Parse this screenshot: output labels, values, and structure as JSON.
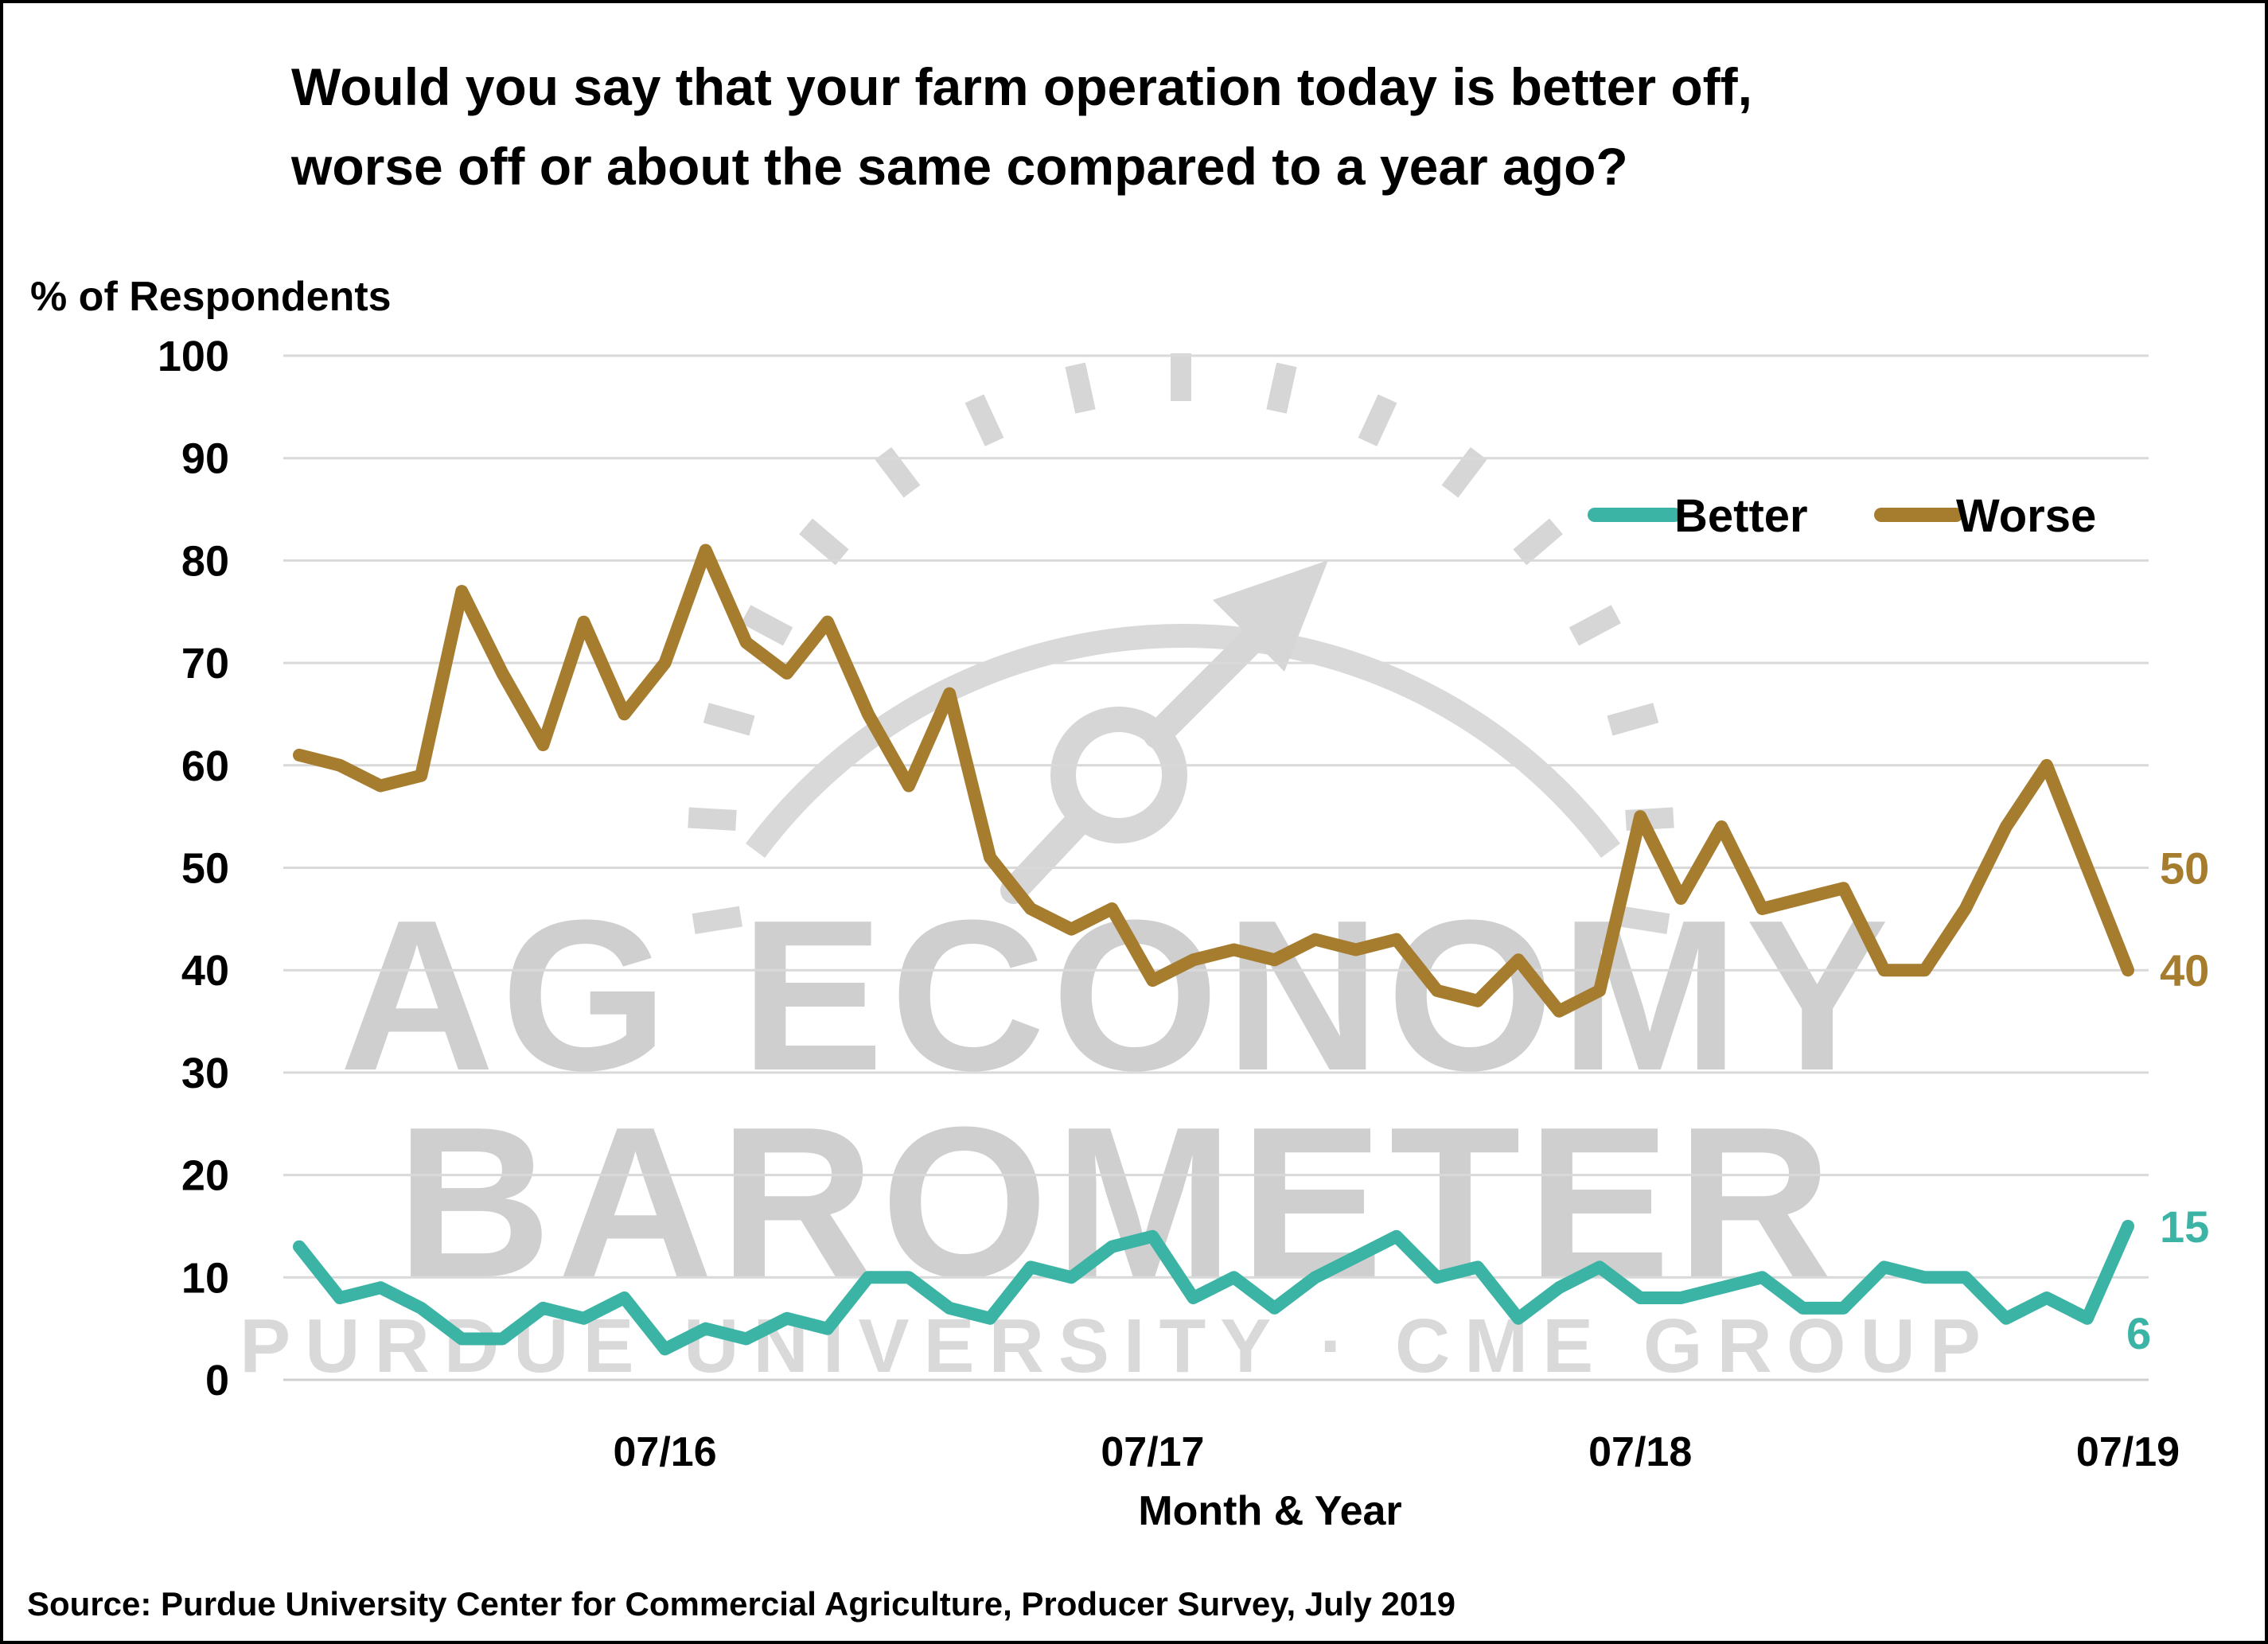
{
  "title_lines": [
    "Would you say that your farm operation today is better off,",
    "worse off or about the same compared to a year ago?"
  ],
  "watermark": {
    "line1": "AG ECONOMY",
    "line2": "BAROMETER",
    "line3": "PURDUE UNIVERSITY · CME GROUP",
    "icon": "gauge-icon"
  },
  "source": "Source: Purdue University Center for Commercial Agriculture, Producer Survey, July 2019",
  "chart_data": {
    "type": "line",
    "title": "Would you say that your farm operation today is better off, worse off or about the same compared to a year ago?",
    "xlabel": "Month & Year",
    "ylabel": "% of Respondents",
    "ylim": [
      0,
      100
    ],
    "yticks": [
      0,
      10,
      20,
      30,
      40,
      50,
      60,
      70,
      80,
      90,
      100
    ],
    "x_months": [
      "10/15",
      "11/15",
      "12/15",
      "01/16",
      "02/16",
      "03/16",
      "04/16",
      "05/16",
      "06/16",
      "07/16",
      "08/16",
      "09/16",
      "10/16",
      "11/16",
      "12/16",
      "01/17",
      "02/17",
      "03/17",
      "04/17",
      "05/17",
      "06/17",
      "07/17",
      "08/17",
      "09/17",
      "10/17",
      "11/17",
      "12/17",
      "01/18",
      "02/18",
      "03/18",
      "04/18",
      "05/18",
      "06/18",
      "07/18",
      "08/18",
      "09/18",
      "10/18",
      "11/18",
      "12/18",
      "01/19",
      "02/19",
      "03/19",
      "04/19",
      "05/19",
      "06/19",
      "07/19"
    ],
    "xtick_labels": [
      "07/16",
      "07/17",
      "07/18",
      "07/19"
    ],
    "grid": true,
    "legend_position": "top-right",
    "series": [
      {
        "name": "Better",
        "color": "#3bb3a5",
        "end_labels": [
          "15",
          "6"
        ],
        "values": [
          13,
          8,
          9,
          7,
          4,
          4,
          7,
          6,
          8,
          3,
          5,
          4,
          6,
          5,
          10,
          10,
          7,
          6,
          11,
          10,
          13,
          14,
          8,
          10,
          7,
          10,
          12,
          14,
          10,
          11,
          6,
          9,
          11,
          8,
          8,
          9,
          10,
          7,
          7,
          11,
          10,
          10,
          6,
          8,
          6,
          15
        ]
      },
      {
        "name": "Worse",
        "color": "#a67c2e",
        "end_labels": [
          "50",
          "40"
        ],
        "values": [
          61,
          60,
          58,
          59,
          77,
          69,
          62,
          74,
          65,
          70,
          81,
          72,
          69,
          74,
          65,
          58,
          67,
          51,
          46,
          44,
          46,
          39,
          41,
          42,
          41,
          43,
          42,
          43,
          38,
          37,
          41,
          36,
          38,
          55,
          47,
          54,
          46,
          47,
          48,
          40,
          40,
          46,
          54,
          60,
          50,
          40
        ]
      }
    ]
  }
}
